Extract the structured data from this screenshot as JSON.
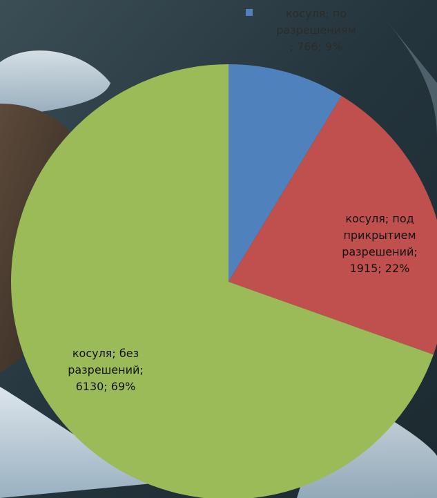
{
  "chart_data": {
    "type": "pie",
    "title": "",
    "slices": [
      {
        "label": "косуля; по\nразрешениям\n; 766; 9%",
        "value": 766,
        "percent": 9,
        "color": "#4f81bd"
      },
      {
        "label": "косуля; под\nприкрытием\nразрешений;\n1915; 22%",
        "value": 1915,
        "percent": 22,
        "color": "#c0504d"
      },
      {
        "label": "косуля;  без\nразрешений;\n6130; 69%",
        "value": 6130,
        "percent": 69,
        "color": "#9bbb59"
      }
    ],
    "start_angle": "12 o'clock",
    "direction": "clockwise",
    "legend": {
      "placement": "top",
      "entries": [
        {
          "ref": "slices.0",
          "color": "#4f81bd"
        }
      ]
    },
    "background": "photo of rocky river with icy water"
  }
}
